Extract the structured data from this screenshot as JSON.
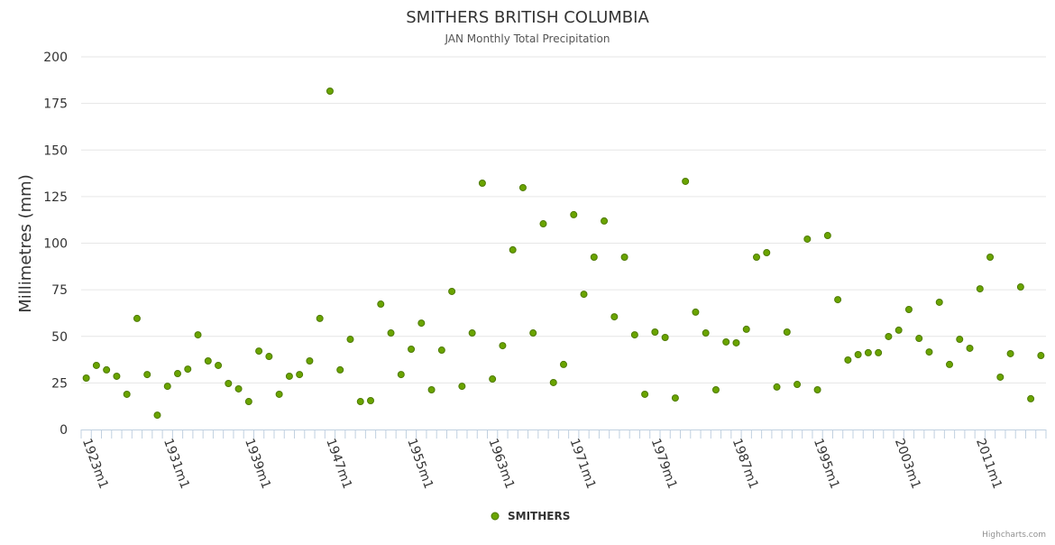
{
  "chart_data": {
    "type": "scatter",
    "title": "SMITHERS BRITISH COLUMBIA",
    "subtitle": "JAN Monthly Total Precipitation",
    "xlabel": "",
    "ylabel": "Millimetres (mm)",
    "ylim": [
      0,
      200
    ],
    "yticks": [
      0,
      25,
      50,
      75,
      100,
      125,
      150,
      175,
      200
    ],
    "grid": true,
    "legend_position": "bottom-center",
    "x_start_year": 1923,
    "x_label_suffix": "m1",
    "x_label_every": 8,
    "series": [
      {
        "name": "SMITHERS",
        "color": "#6aa400",
        "values": [
          27.6,
          34.4,
          32,
          28.6,
          18.9,
          59.6,
          29.5,
          7.7,
          23.2,
          30,
          32.4,
          50.8,
          36.8,
          34.4,
          24.7,
          21.8,
          15,
          42.1,
          39.2,
          18.9,
          28.6,
          29.5,
          36.8,
          59.6,
          181.6,
          32,
          48.4,
          15,
          15.5,
          67.3,
          51.8,
          29.5,
          43.1,
          57.1,
          21.3,
          42.6,
          74.1,
          23.2,
          51.8,
          132.2,
          27.1,
          45,
          96.4,
          129.8,
          51.8,
          110.4,
          25.2,
          34.9,
          115.3,
          72.6,
          92.5,
          111.9,
          60.5,
          92.5,
          50.8,
          18.9,
          52.3,
          49.4,
          16.9,
          133.2,
          63,
          51.8,
          21.3,
          47,
          46.5,
          53.8,
          92.5,
          94.9,
          22.8,
          52.3,
          24.2,
          102.2,
          21.3,
          104.1,
          69.7,
          37.3,
          40.2,
          41.2,
          41.2,
          49.9,
          53.3,
          64.4,
          48.9,
          41.6,
          68.3,
          34.9,
          48.4,
          43.6,
          75.5,
          92.5,
          28.1,
          40.7,
          76.5,
          16.5,
          39.7
        ]
      }
    ]
  },
  "credits": "Highcharts.com"
}
